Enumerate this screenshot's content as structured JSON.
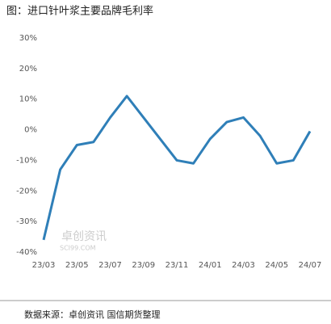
{
  "chart_data": {
    "type": "line",
    "title": "图：进口针叶浆主要品牌毛利率",
    "categories": [
      "23/03",
      null,
      "23/05",
      null,
      "23/07",
      null,
      "23/09",
      null,
      "23/11",
      null,
      "24/01",
      null,
      "24/03",
      null,
      "24/05",
      null,
      "24/07"
    ],
    "series": [
      {
        "color": "#2f7fb8",
        "values": [
          -36,
          -13,
          -5,
          -4,
          4,
          11,
          4,
          -3,
          -10,
          -11,
          -3,
          2.5,
          4,
          -2,
          -11,
          -10,
          -0.5
        ]
      }
    ],
    "ylim": [
      -40,
      30
    ],
    "yticks": [
      {
        "value": -40,
        "label": "-40%"
      },
      {
        "value": -30,
        "label": "-30%"
      },
      {
        "value": -20,
        "label": "-20%"
      },
      {
        "value": -10,
        "label": "-10%"
      },
      {
        "value": 0,
        "label": "0%"
      },
      {
        "value": 10,
        "label": "10%"
      },
      {
        "value": 20,
        "label": "20%"
      },
      {
        "value": 30,
        "label": "30%"
      }
    ],
    "grid": false,
    "watermark": [
      "卓创资讯",
      "SCI99.COM"
    ],
    "source": "数据来源：卓创资讯 国信期货整理"
  }
}
